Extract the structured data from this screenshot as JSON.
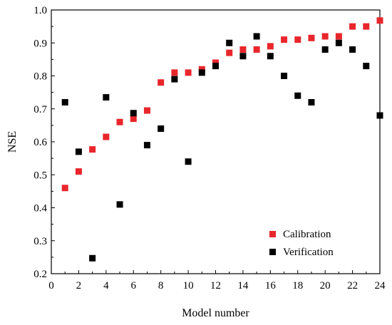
{
  "chart_data": {
    "type": "scatter",
    "xlabel": "Model number",
    "ylabel": "NSE",
    "xlim": [
      0,
      24
    ],
    "ylim": [
      0.2,
      1.0
    ],
    "xticks": [
      "0",
      "2",
      "4",
      "6",
      "8",
      "10",
      "12",
      "14",
      "16",
      "18",
      "20",
      "22",
      "24"
    ],
    "yticks": [
      "0.2",
      "0.3",
      "0.4",
      "0.5",
      "0.6",
      "0.7",
      "0.8",
      "0.9",
      "1.0"
    ],
    "grid": false,
    "legend_position": "bottom-right",
    "series": [
      {
        "name": "Calibration",
        "color": "#e8262c",
        "x": [
          1,
          2,
          3,
          4,
          5,
          6,
          7,
          8,
          9,
          10,
          11,
          12,
          13,
          14,
          15,
          16,
          17,
          18,
          19,
          20,
          21,
          22,
          23,
          24
        ],
        "y": [
          0.46,
          0.51,
          0.577,
          0.615,
          0.66,
          0.67,
          0.695,
          0.78,
          0.81,
          0.81,
          0.82,
          0.84,
          0.87,
          0.88,
          0.88,
          0.89,
          0.91,
          0.91,
          0.915,
          0.92,
          0.92,
          0.95,
          0.95,
          0.968
        ]
      },
      {
        "name": "Verification",
        "color": "#000000",
        "x": [
          1,
          2,
          3,
          4,
          5,
          6,
          7,
          8,
          9,
          10,
          11,
          12,
          13,
          14,
          15,
          16,
          17,
          18,
          19,
          20,
          21,
          22,
          23,
          24
        ],
        "y": [
          0.72,
          0.57,
          0.247,
          0.735,
          0.41,
          0.687,
          0.59,
          0.64,
          0.79,
          0.54,
          0.81,
          0.83,
          0.9,
          0.86,
          0.92,
          0.86,
          0.8,
          0.74,
          0.72,
          0.88,
          0.9,
          0.88,
          0.83,
          0.68
        ]
      }
    ]
  }
}
